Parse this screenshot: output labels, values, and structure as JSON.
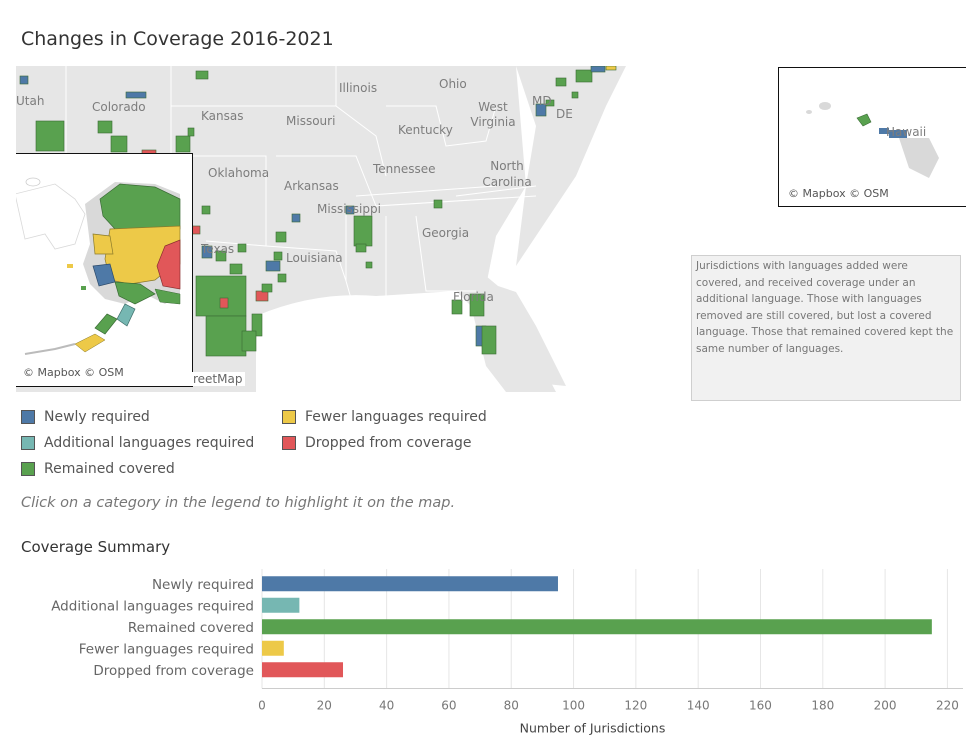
{
  "page": {
    "title": "Changes in Coverage 2016-2021"
  },
  "colors": {
    "newly": "#4e79a7",
    "additional": "#76b7b2",
    "remained": "#59a14f",
    "fewer": "#edc948",
    "dropped": "#e15759"
  },
  "map": {
    "state_labels": [
      "Utah",
      "Colorado",
      "Kansas",
      "Missouri",
      "Illinois",
      "Ohio",
      "MD",
      "DE",
      "West Virginia",
      "Kentucky",
      "Oklahoma",
      "Arkansas",
      "Tennessee",
      "North Carolina",
      "Mississippi",
      "Georgia",
      "Texas",
      "Louisiana",
      "Florida",
      "Hawaii"
    ],
    "attribution": "© Mapbox © OSM",
    "osm_tail": "reetMap"
  },
  "note": "Jurisdictions with languages added were covered, and received coverage under an additional language. Those with languages removed are still covered, but lost a covered language. Those  that remained covered kept the same number of languages.",
  "legend": {
    "items": [
      {
        "label": "Newly required",
        "icon": "square-swatch"
      },
      {
        "label": "Additional languages required",
        "icon": "square-swatch"
      },
      {
        "label": "Remained covered",
        "icon": "square-swatch"
      },
      {
        "label": "Fewer languages required",
        "icon": "square-swatch"
      },
      {
        "label": "Dropped from coverage",
        "icon": "square-swatch"
      }
    ]
  },
  "hint": "Click on a category in the legend to highlight it on the map.",
  "summary_title": "Coverage Summary",
  "chart_data": {
    "type": "bar",
    "orientation": "horizontal",
    "categories": [
      "Newly required",
      "Additional languages required",
      "Remained covered",
      "Fewer languages required",
      "Dropped from coverage"
    ],
    "values": [
      95,
      12,
      215,
      7,
      26
    ],
    "xlabel": "Number of Jurisdictions",
    "xlim": [
      0,
      225
    ],
    "ticks": [
      0,
      20,
      40,
      60,
      80,
      100,
      120,
      140,
      160,
      180,
      200,
      220
    ],
    "grid": true
  }
}
